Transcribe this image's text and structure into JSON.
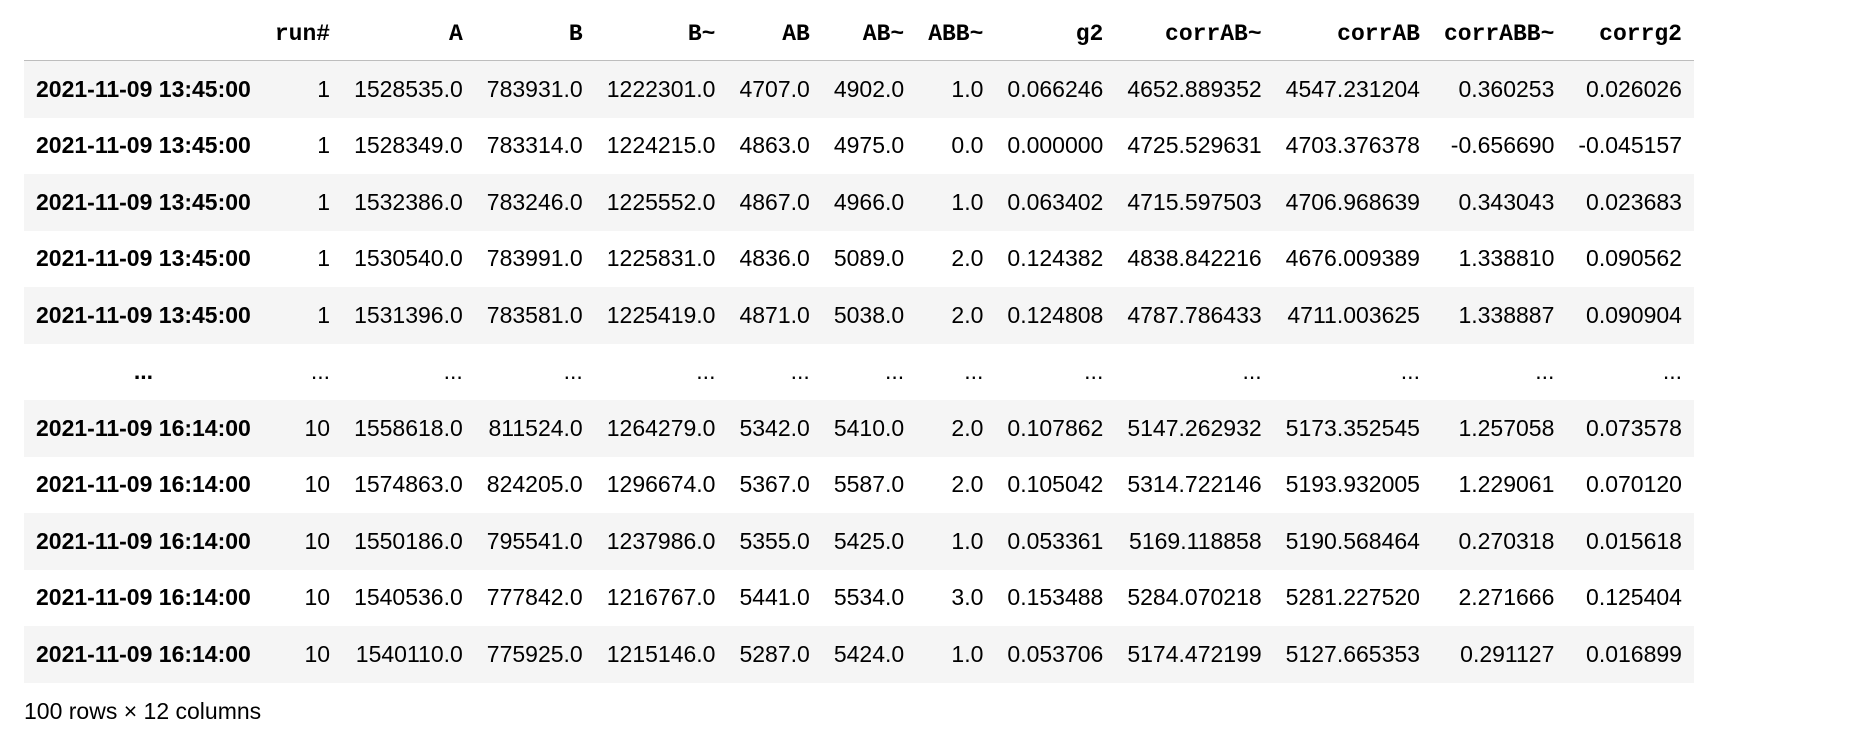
{
  "table": {
    "columns": [
      "",
      "run#",
      "A",
      "B",
      "B~",
      "AB",
      "AB~",
      "ABB~",
      "g2",
      "corrAB~",
      "corrAB",
      "corrABB~",
      "corrg2"
    ],
    "rows": [
      {
        "index": "2021-11-09 13:45:00",
        "cells": [
          "1",
          "1528535.0",
          "783931.0",
          "1222301.0",
          "4707.0",
          "4902.0",
          "1.0",
          "0.066246",
          "4652.889352",
          "4547.231204",
          "0.360253",
          "0.026026"
        ]
      },
      {
        "index": "2021-11-09 13:45:00",
        "cells": [
          "1",
          "1528349.0",
          "783314.0",
          "1224215.0",
          "4863.0",
          "4975.0",
          "0.0",
          "0.000000",
          "4725.529631",
          "4703.376378",
          "-0.656690",
          "-0.045157"
        ]
      },
      {
        "index": "2021-11-09 13:45:00",
        "cells": [
          "1",
          "1532386.0",
          "783246.0",
          "1225552.0",
          "4867.0",
          "4966.0",
          "1.0",
          "0.063402",
          "4715.597503",
          "4706.968639",
          "0.343043",
          "0.023683"
        ]
      },
      {
        "index": "2021-11-09 13:45:00",
        "cells": [
          "1",
          "1530540.0",
          "783991.0",
          "1225831.0",
          "4836.0",
          "5089.0",
          "2.0",
          "0.124382",
          "4838.842216",
          "4676.009389",
          "1.338810",
          "0.090562"
        ]
      },
      {
        "index": "2021-11-09 13:45:00",
        "cells": [
          "1",
          "1531396.0",
          "783581.0",
          "1225419.0",
          "4871.0",
          "5038.0",
          "2.0",
          "0.124808",
          "4787.786433",
          "4711.003625",
          "1.338887",
          "0.090904"
        ]
      },
      {
        "index": "...",
        "cells": [
          "...",
          "...",
          "...",
          "...",
          "...",
          "...",
          "...",
          "...",
          "...",
          "...",
          "...",
          "..."
        ]
      },
      {
        "index": "2021-11-09 16:14:00",
        "cells": [
          "10",
          "1558618.0",
          "811524.0",
          "1264279.0",
          "5342.0",
          "5410.0",
          "2.0",
          "0.107862",
          "5147.262932",
          "5173.352545",
          "1.257058",
          "0.073578"
        ]
      },
      {
        "index": "2021-11-09 16:14:00",
        "cells": [
          "10",
          "1574863.0",
          "824205.0",
          "1296674.0",
          "5367.0",
          "5587.0",
          "2.0",
          "0.105042",
          "5314.722146",
          "5193.932005",
          "1.229061",
          "0.070120"
        ]
      },
      {
        "index": "2021-11-09 16:14:00",
        "cells": [
          "10",
          "1550186.0",
          "795541.0",
          "1237986.0",
          "5355.0",
          "5425.0",
          "1.0",
          "0.053361",
          "5169.118858",
          "5190.568464",
          "0.270318",
          "0.015618"
        ]
      },
      {
        "index": "2021-11-09 16:14:00",
        "cells": [
          "10",
          "1540536.0",
          "777842.0",
          "1216767.0",
          "5441.0",
          "5534.0",
          "3.0",
          "0.153488",
          "5284.070218",
          "5281.227520",
          "2.271666",
          "0.125404"
        ]
      },
      {
        "index": "2021-11-09 16:14:00",
        "cells": [
          "10",
          "1540110.0",
          "775925.0",
          "1215146.0",
          "5287.0",
          "5424.0",
          "1.0",
          "0.053706",
          "5174.472199",
          "5127.665353",
          "0.291127",
          "0.016899"
        ]
      }
    ]
  },
  "footer": {
    "text": "100 rows × 12 columns"
  }
}
